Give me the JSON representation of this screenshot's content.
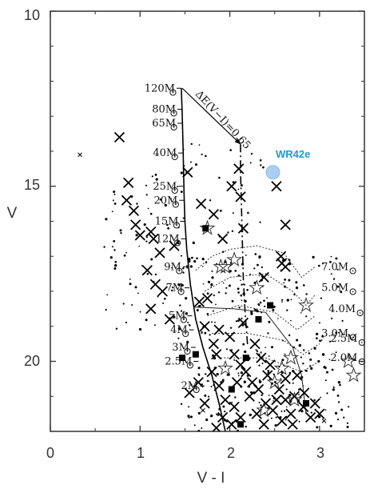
{
  "chart_data": {
    "type": "scatter",
    "title": "",
    "xlabel": "V - I",
    "ylabel": "V",
    "xlim": [
      0,
      3.5
    ],
    "ylim": [
      22.0,
      10.0
    ],
    "y_inverted": true,
    "x_ticks": [
      "0",
      "1",
      "2",
      "3"
    ],
    "y_ticks": [
      "10",
      "15",
      "20"
    ],
    "colors": {
      "axis": "#333333",
      "marker": "#000000",
      "highlight": "#a9cdf5",
      "highlight_label": "#1a9bd9"
    },
    "highlight": {
      "label": "WR42e",
      "x": 2.48,
      "y": 14.6
    },
    "reddening_arrow": {
      "label": "ΔE(V−I)=0.65",
      "from": [
        1.47,
        12.2
      ],
      "to": [
        2.12,
        13.8
      ]
    },
    "isochrone_masses": [
      {
        "label": "120M",
        "x": 1.46,
        "y": 12.2
      },
      {
        "label": "80M",
        "x": 1.47,
        "y": 12.8
      },
      {
        "label": "65M",
        "x": 1.47,
        "y": 13.2
      },
      {
        "label": "40M",
        "x": 1.48,
        "y": 14.05
      },
      {
        "label": "25M",
        "x": 1.48,
        "y": 15.0
      },
      {
        "label": "20M",
        "x": 1.49,
        "y": 15.4
      },
      {
        "label": "15M",
        "x": 1.5,
        "y": 16.0
      },
      {
        "label": "12M",
        "x": 1.51,
        "y": 16.5
      },
      {
        "label": "9M",
        "x": 1.53,
        "y": 17.3
      },
      {
        "label": "7M",
        "x": 1.55,
        "y": 17.9
      },
      {
        "label": "5M",
        "x": 1.58,
        "y": 18.7
      },
      {
        "label": "4M",
        "x": 1.6,
        "y": 19.1
      },
      {
        "label": "3M",
        "x": 1.62,
        "y": 19.6
      },
      {
        "label": "2.5M",
        "x": 1.65,
        "y": 20.0
      },
      {
        "label": "2M",
        "x": 1.72,
        "y": 20.7
      }
    ],
    "pms_labels": [
      {
        "label": "7.0M",
        "x": 3.02,
        "y": 17.3
      },
      {
        "label": "5.0M",
        "x": 3.02,
        "y": 17.9
      },
      {
        "label": "4.0M",
        "x": 3.1,
        "y": 18.5
      },
      {
        "label": "3.0M",
        "x": 3.02,
        "y": 19.2
      },
      {
        "label": "2.5M",
        "x": 3.12,
        "y": 19.35
      },
      {
        "label": "2.0M",
        "x": 3.12,
        "y": 19.9
      }
    ],
    "isochrone_track": [
      [
        1.46,
        12.2
      ],
      [
        1.47,
        13.0
      ],
      [
        1.48,
        14.0
      ],
      [
        1.49,
        15.2
      ],
      [
        1.5,
        16.0
      ],
      [
        1.52,
        16.8
      ],
      [
        1.56,
        17.8
      ],
      [
        1.62,
        18.8
      ],
      [
        1.7,
        19.6
      ],
      [
        1.8,
        20.4
      ],
      [
        1.88,
        21.2
      ],
      [
        1.95,
        22.0
      ]
    ],
    "shifted_track": [
      [
        2.12,
        13.8
      ],
      [
        2.12,
        14.6
      ],
      [
        2.13,
        15.6
      ],
      [
        2.14,
        16.6
      ],
      [
        2.15,
        17.6
      ],
      [
        2.17,
        18.6
      ],
      [
        2.2,
        19.6
      ]
    ],
    "pms_tracks": [
      [
        [
          1.62,
          17.4
        ],
        [
          1.8,
          17.0
        ],
        [
          2.0,
          16.8
        ],
        [
          2.3,
          16.7
        ],
        [
          2.6,
          16.9
        ],
        [
          2.8,
          17.6
        ],
        [
          2.95,
          17.3
        ]
      ],
      [
        [
          1.72,
          18.0
        ],
        [
          2.0,
          17.6
        ],
        [
          2.4,
          17.5
        ],
        [
          2.7,
          18.0
        ],
        [
          2.85,
          18.4
        ],
        [
          2.95,
          18.1
        ]
      ],
      [
        [
          1.75,
          18.7
        ],
        [
          2.1,
          18.4
        ],
        [
          2.5,
          18.6
        ],
        [
          2.75,
          19.1
        ],
        [
          2.95,
          18.7
        ]
      ],
      [
        [
          1.8,
          19.2
        ],
        [
          2.2,
          19.2
        ],
        [
          2.6,
          19.4
        ],
        [
          2.82,
          19.8
        ],
        [
          3.0,
          19.5
        ]
      ],
      [
        [
          1.9,
          19.9
        ],
        [
          2.4,
          19.9
        ],
        [
          2.8,
          20.3
        ],
        [
          3.0,
          20.0
        ]
      ]
    ],
    "pms_solid": [
      [
        1.6,
        18.45
      ],
      [
        2.05,
        18.5
      ],
      [
        2.4,
        18.6
      ],
      [
        2.7,
        19.6
      ],
      [
        2.8,
        20.4
      ],
      [
        2.85,
        21.5
      ]
    ],
    "crosses": [
      [
        0.77,
        13.6
      ],
      [
        0.87,
        14.9
      ],
      [
        0.85,
        15.4
      ],
      [
        0.93,
        15.7
      ],
      [
        0.95,
        16.1
      ],
      [
        1.0,
        16.4
      ],
      [
        1.12,
        16.3
      ],
      [
        1.15,
        16.5
      ],
      [
        1.22,
        16.9
      ],
      [
        1.08,
        17.4
      ],
      [
        1.17,
        17.8
      ],
      [
        1.12,
        18.5
      ],
      [
        1.33,
        18.8
      ],
      [
        1.25,
        18.0
      ],
      [
        1.53,
        14.6
      ],
      [
        1.68,
        15.5
      ],
      [
        1.82,
        15.8
      ],
      [
        1.92,
        16.5
      ],
      [
        2.02,
        15.0
      ],
      [
        2.1,
        14.5
      ],
      [
        2.12,
        15.3
      ],
      [
        2.15,
        16.2
      ],
      [
        2.52,
        15.0
      ],
      [
        2.62,
        16.1
      ],
      [
        2.57,
        17.0
      ],
      [
        2.62,
        17.3
      ],
      [
        2.38,
        17.6
      ],
      [
        2.58,
        17.2
      ],
      [
        1.66,
        18.3
      ],
      [
        1.75,
        18.2
      ],
      [
        1.72,
        19.0
      ],
      [
        1.82,
        19.5
      ],
      [
        1.88,
        19.1
      ],
      [
        2.0,
        19.3
      ],
      [
        2.05,
        19.8
      ],
      [
        2.15,
        18.9
      ],
      [
        2.28,
        19.5
      ],
      [
        2.35,
        19.9
      ],
      [
        2.42,
        20.4
      ],
      [
        2.55,
        20.8
      ],
      [
        2.62,
        21.1
      ],
      [
        2.72,
        21.0
      ],
      [
        2.68,
        21.5
      ],
      [
        2.82,
        21.3
      ],
      [
        2.9,
        21.6
      ],
      [
        3.0,
        21.5
      ],
      [
        2.95,
        21.2
      ],
      [
        2.83,
        20.9
      ],
      [
        1.55,
        20.9
      ],
      [
        1.65,
        20.6
      ],
      [
        1.72,
        21.2
      ],
      [
        1.8,
        20.3
      ],
      [
        1.88,
        20.7
      ],
      [
        1.95,
        21.1
      ],
      [
        2.05,
        21.3
      ],
      [
        2.12,
        21.6
      ],
      [
        2.22,
        21.0
      ],
      [
        2.3,
        21.5
      ],
      [
        2.38,
        21.8
      ],
      [
        2.48,
        21.4
      ],
      [
        2.58,
        21.7
      ],
      [
        2.18,
        20.3
      ],
      [
        2.25,
        20.6
      ],
      [
        2.32,
        20.8
      ],
      [
        2.45,
        20.1
      ],
      [
        2.52,
        21.1
      ],
      [
        1.92,
        21.6
      ],
      [
        2.02,
        21.8
      ],
      [
        2.12,
        20.1
      ],
      [
        2.7,
        21.8
      ],
      [
        1.85,
        21.9
      ],
      [
        2.62,
        20.5
      ],
      [
        1.38,
        16.7
      ],
      [
        1.85,
        19.8
      ],
      [
        2.08,
        20.6
      ],
      [
        2.4,
        21.2
      ],
      [
        2.75,
        20.4
      ]
    ],
    "small_crosses": [
      [
        0.33,
        14.1
      ],
      [
        1.7,
        21.4
      ],
      [
        3.05,
        21.7
      ]
    ],
    "stars": [
      [
        1.75,
        16.2
      ],
      [
        2.05,
        17.1
      ],
      [
        1.95,
        17.3
      ],
      [
        1.9,
        17.3
      ],
      [
        2.3,
        17.9
      ],
      [
        2.85,
        18.4
      ],
      [
        2.68,
        19.9
      ],
      [
        2.58,
        20.2
      ],
      [
        2.5,
        20.6
      ],
      [
        1.95,
        20.2
      ],
      [
        2.38,
        21.4
      ],
      [
        3.32,
        20.0
      ],
      [
        3.38,
        20.4
      ],
      [
        2.72,
        21.1
      ]
    ],
    "squares": [
      [
        1.73,
        16.2
      ],
      [
        2.45,
        18.4
      ],
      [
        1.62,
        19.8
      ],
      [
        1.47,
        19.9
      ],
      [
        2.32,
        18.8
      ],
      [
        2.18,
        19.9
      ],
      [
        2.02,
        20.8
      ],
      [
        2.85,
        21.2
      ],
      [
        2.12,
        21.8
      ]
    ],
    "dots_seed": 12345,
    "dots_count": 420
  }
}
